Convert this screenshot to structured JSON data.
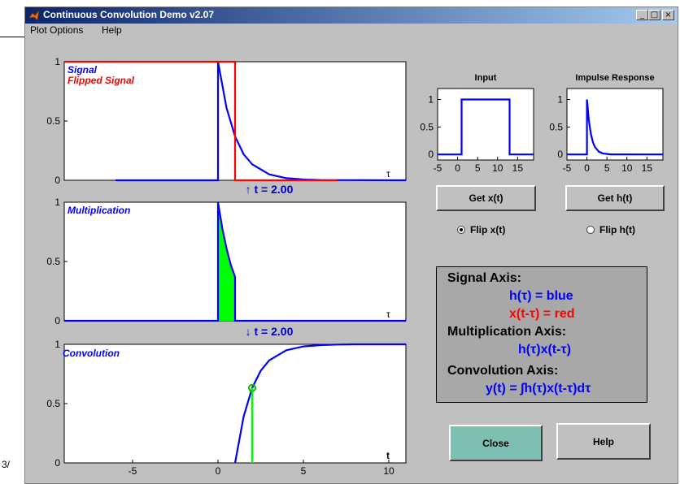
{
  "window": {
    "title": "Continuous Convolution Demo v2.07",
    "controls": [
      "_",
      "□",
      "×"
    ]
  },
  "page_fragment": "3/",
  "menu": [
    "Plot Options",
    "Help"
  ],
  "panels": {
    "signal": {
      "label1": "Signal",
      "label2": "Flipped Signal",
      "axis_var": "τ"
    },
    "multiplication": {
      "label": "Multiplication",
      "axis_var": "τ"
    },
    "convolution": {
      "label": "Convolution",
      "axis_var": "t"
    }
  },
  "t_labels": {
    "up": "↑ t = 2.00",
    "down": "↓ t = 2.00"
  },
  "input_plot": {
    "title": "Input"
  },
  "impulse_plot": {
    "title": "Impulse Response"
  },
  "buttons": {
    "get_x": "Get x(t)",
    "get_h": "Get h(t)",
    "close": "Close",
    "help": "Help"
  },
  "radios": {
    "flip_x": "Flip x(t)",
    "flip_h": "Flip h(t)",
    "selected": "flip_x"
  },
  "legend": {
    "signal_axis": "Signal Axis:",
    "h_blue": "h(τ) = blue",
    "x_red": "x(t-τ) = red",
    "mult_axis": "Multiplication Axis:",
    "mult_expr": "h(τ)x(t-τ)",
    "conv_axis": "Convolution Axis:",
    "conv_expr": "y(t) = ∫h(τ)x(t-τ)dτ"
  },
  "colors": {
    "signal": "#0000ff",
    "flipped": "#ff0000",
    "fill": "#00ff00",
    "window_bg": "#c0c0c0"
  },
  "chart_data": [
    {
      "type": "line",
      "name": "signal-axis",
      "xlim": [
        -9,
        11
      ],
      "ylim": [
        0,
        1
      ],
      "yticks": [
        0,
        0.5,
        1
      ],
      "yticklabels": [
        "0",
        "0.5",
        "1"
      ],
      "series": [
        {
          "name": "Signal",
          "points": [
            [
              -6,
              0
            ],
            [
              0,
              0
            ],
            [
              0,
              1
            ],
            [
              0.5,
              0.61
            ],
            [
              1,
              0.37
            ],
            [
              1.5,
              0.22
            ],
            [
              2,
              0.135
            ],
            [
              3,
              0.05
            ],
            [
              4,
              0.018
            ],
            [
              5,
              0.007
            ],
            [
              6,
              0.002
            ],
            [
              11,
              0
            ]
          ]
        },
        {
          "name": "Flipped Signal",
          "points": [
            [
              -9,
              1
            ],
            [
              1,
              1
            ],
            [
              1,
              0
            ],
            [
              7,
              0
            ]
          ]
        }
      ]
    },
    {
      "type": "area",
      "name": "multiplication-axis",
      "xlim": [
        -9,
        11
      ],
      "ylim": [
        0,
        1
      ],
      "yticks": [
        0,
        0.5,
        1
      ],
      "yticklabels": [
        "0",
        "0.5",
        "1"
      ],
      "series": [
        {
          "name": "Multiplication",
          "points": [
            [
              -9,
              0
            ],
            [
              0,
              0
            ],
            [
              0,
              1
            ],
            [
              0.25,
              0.78
            ],
            [
              0.5,
              0.61
            ],
            [
              0.75,
              0.47
            ],
            [
              1,
              0.37
            ],
            [
              1,
              0
            ],
            [
              11,
              0
            ]
          ],
          "fill": [
            0,
            1
          ]
        }
      ]
    },
    {
      "type": "line",
      "name": "convolution-axis",
      "xlim": [
        -9,
        11
      ],
      "ylim": [
        0,
        1
      ],
      "xticks": [
        -5,
        0,
        5,
        10
      ],
      "xticklabels": [
        "-5",
        "0",
        "5",
        "10"
      ],
      "yticks": [
        0,
        0.5,
        1
      ],
      "yticklabels": [
        "0",
        "0.5",
        "1"
      ],
      "marker": [
        2,
        0.632
      ],
      "series": [
        {
          "name": "Convolution",
          "points": [
            [
              1,
              0
            ],
            [
              1.5,
              0.39
            ],
            [
              2,
              0.632
            ],
            [
              2.5,
              0.777
            ],
            [
              3,
              0.865
            ],
            [
              4,
              0.95
            ],
            [
              5,
              0.982
            ],
            [
              6,
              0.993
            ],
            [
              7,
              0.998
            ],
            [
              8,
              1
            ],
            [
              11,
              1
            ]
          ]
        }
      ]
    },
    {
      "type": "line",
      "name": "input",
      "title": "Input",
      "xlim": [
        -5,
        19
      ],
      "ylim": [
        -0.1,
        1.2
      ],
      "xticks": [
        -5,
        0,
        5,
        10,
        15
      ],
      "xticklabels": [
        "-5",
        "0",
        "5",
        "10",
        "15"
      ],
      "yticks": [
        0,
        0.5,
        1
      ],
      "yticklabels": [
        "0",
        "0.5",
        "1"
      ],
      "series": [
        {
          "name": "x(t)",
          "points": [
            [
              -5,
              0
            ],
            [
              1,
              0
            ],
            [
              1,
              1
            ],
            [
              13,
              1
            ],
            [
              13,
              0
            ],
            [
              19,
              0
            ]
          ]
        }
      ]
    },
    {
      "type": "line",
      "name": "impulse",
      "title": "Impulse Response",
      "xlim": [
        -5,
        19
      ],
      "ylim": [
        -0.1,
        1.2
      ],
      "xticks": [
        -5,
        0,
        5,
        10,
        15
      ],
      "xticklabels": [
        "-5",
        "0",
        "5",
        "10",
        "15"
      ],
      "yticks": [
        0,
        0.5,
        1
      ],
      "yticklabels": [
        "0",
        "0.5",
        "1"
      ],
      "series": [
        {
          "name": "h(t)",
          "points": [
            [
              -5,
              0
            ],
            [
              0,
              0
            ],
            [
              0,
              1
            ],
            [
              0.5,
              0.61
            ],
            [
              1,
              0.37
            ],
            [
              1.5,
              0.22
            ],
            [
              2,
              0.135
            ],
            [
              3,
              0.05
            ],
            [
              4,
              0.018
            ],
            [
              6,
              0.002
            ],
            [
              19,
              0
            ]
          ]
        }
      ]
    }
  ]
}
